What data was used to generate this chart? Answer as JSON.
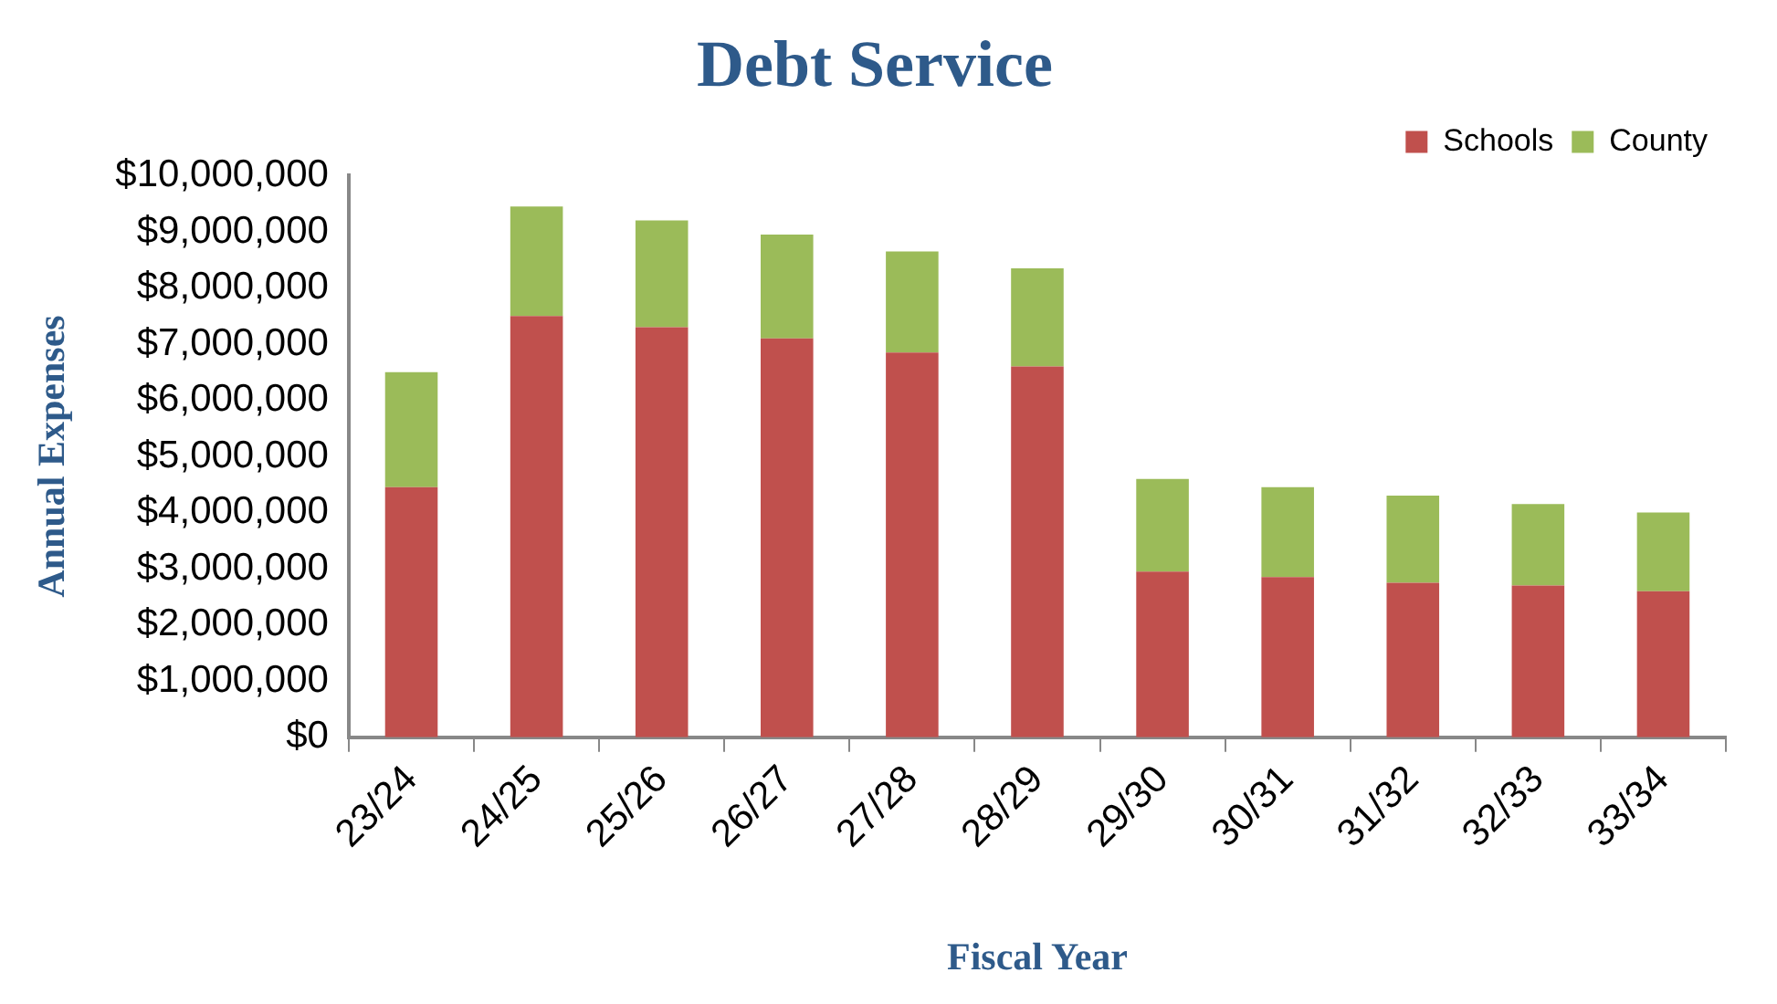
{
  "chart_data": {
    "type": "bar",
    "title": "Debt Service",
    "xlabel": "Fiscal Year",
    "ylabel": "Annual Expenses",
    "categories": [
      "23/24",
      "24/25",
      "25/26",
      "26/27",
      "27/28",
      "28/29",
      "29/30",
      "30/31",
      "31/32",
      "32/33",
      "33/34"
    ],
    "stacked": true,
    "series": [
      {
        "name": "Schools",
        "color": "#c0504d",
        "values": [
          4450000,
          7500000,
          7300000,
          7100000,
          6850000,
          6600000,
          2950000,
          2850000,
          2750000,
          2700000,
          2600000
        ]
      },
      {
        "name": "County",
        "color": "#9bbb59",
        "values": [
          2050000,
          1950000,
          1900000,
          1850000,
          1800000,
          1750000,
          1650000,
          1600000,
          1550000,
          1450000,
          1400000
        ]
      }
    ],
    "ylim": [
      0,
      10000000
    ],
    "yticks": [
      {
        "value": 0,
        "label": "$0"
      },
      {
        "value": 1000000,
        "label": "$1,000,000"
      },
      {
        "value": 2000000,
        "label": "$2,000,000"
      },
      {
        "value": 3000000,
        "label": "$3,000,000"
      },
      {
        "value": 4000000,
        "label": "$4,000,000"
      },
      {
        "value": 5000000,
        "label": "$5,000,000"
      },
      {
        "value": 6000000,
        "label": "$6,000,000"
      },
      {
        "value": 7000000,
        "label": "$7,000,000"
      },
      {
        "value": 8000000,
        "label": "$8,000,000"
      },
      {
        "value": 9000000,
        "label": "$9,000,000"
      },
      {
        "value": 10000000,
        "label": "$10,000,000"
      }
    ],
    "grid": false,
    "legend": "top right"
  }
}
